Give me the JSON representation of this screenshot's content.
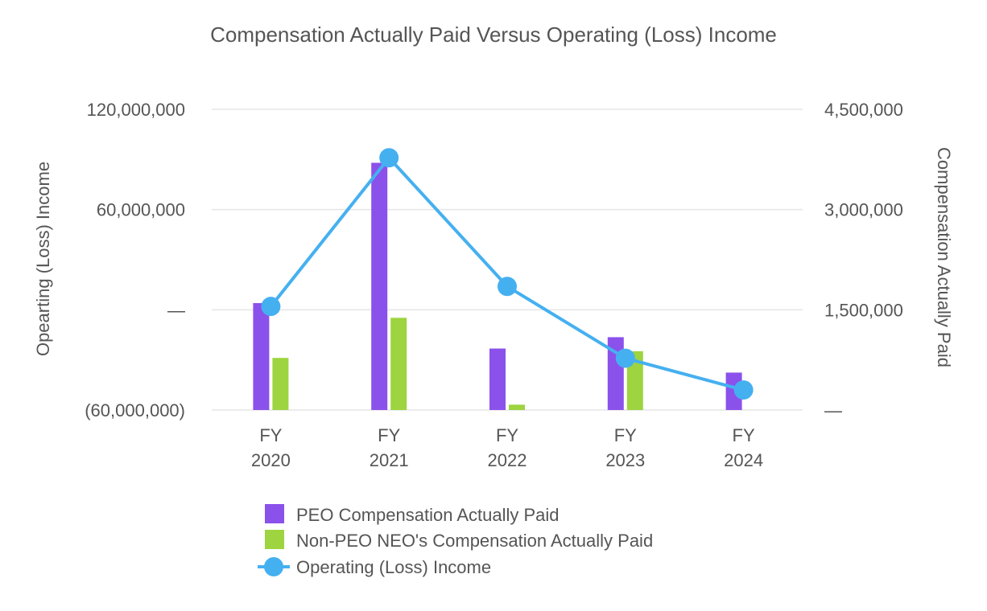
{
  "chart_data": {
    "type": "bar",
    "title": "Compensation Actually Paid Versus Operating (Loss) Income",
    "categories": [
      [
        "FY",
        "2020"
      ],
      [
        "FY",
        "2021"
      ],
      [
        "FY",
        "2022"
      ],
      [
        "FY",
        "2023"
      ],
      [
        "FY",
        "2024"
      ]
    ],
    "left_axis": {
      "label": "Opearting (Loss) Income",
      "ticks": [
        {
          "value": -60000000,
          "label": "(60,000,000)"
        },
        {
          "value": 0,
          "label": "—"
        },
        {
          "value": 60000000,
          "label": "60,000,000"
        },
        {
          "value": 120000000,
          "label": "120,000,000"
        }
      ],
      "ylim": [
        -60000000,
        120000000
      ]
    },
    "right_axis": {
      "label": "Compensation Actually Paid",
      "ticks": [
        {
          "value": 0,
          "label": "—"
        },
        {
          "value": 1500000,
          "label": "1,500,000"
        },
        {
          "value": 3000000,
          "label": "3,000,000"
        },
        {
          "value": 4500000,
          "label": "4,500,000"
        }
      ],
      "ylim": [
        0,
        4500000
      ]
    },
    "series": [
      {
        "name": "PEO Compensation Actually Paid",
        "type": "bar",
        "axis": "right",
        "color": "#8b51eb",
        "values": [
          1600000,
          3700000,
          920000,
          1090000,
          560000
        ]
      },
      {
        "name": "Non-PEO NEO's Compensation Actually Paid",
        "type": "bar",
        "axis": "right",
        "color": "#9dd440",
        "values": [
          780000,
          1380000,
          80000,
          880000,
          0
        ]
      },
      {
        "name": "Operating (Loss) Income",
        "type": "line",
        "axis": "left",
        "color": "#45b0f0",
        "values": [
          2000000,
          91000000,
          14000000,
          -29000000,
          -48000000
        ]
      }
    ],
    "legend_position": "bottom"
  }
}
